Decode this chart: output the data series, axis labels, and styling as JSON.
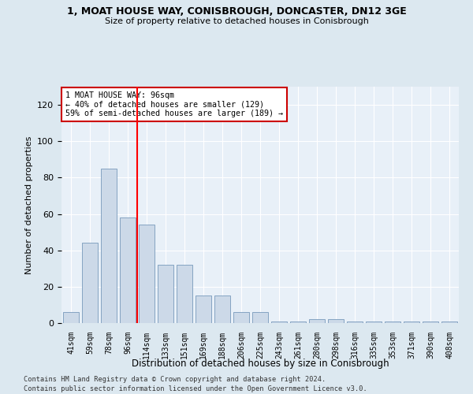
{
  "title1": "1, MOAT HOUSE WAY, CONISBROUGH, DONCASTER, DN12 3GE",
  "title2": "Size of property relative to detached houses in Conisbrough",
  "xlabel": "Distribution of detached houses by size in Conisbrough",
  "ylabel": "Number of detached properties",
  "categories": [
    "41sqm",
    "59sqm",
    "78sqm",
    "96sqm",
    "114sqm",
    "133sqm",
    "151sqm",
    "169sqm",
    "188sqm",
    "206sqm",
    "225sqm",
    "243sqm",
    "261sqm",
    "280sqm",
    "298sqm",
    "316sqm",
    "335sqm",
    "353sqm",
    "371sqm",
    "390sqm",
    "408sqm"
  ],
  "values": [
    6,
    44,
    85,
    58,
    54,
    32,
    32,
    15,
    15,
    6,
    6,
    1,
    1,
    2,
    2,
    1,
    1,
    1,
    1,
    1,
    1
  ],
  "bar_color": "#ccd9e8",
  "bar_edge_color": "#7799bb",
  "red_line_index": 3,
  "annotation_text": "1 MOAT HOUSE WAY: 96sqm\n← 40% of detached houses are smaller (129)\n59% of semi-detached houses are larger (189) →",
  "annotation_box_color": "#ffffff",
  "annotation_box_edge": "#cc0000",
  "ylim": [
    0,
    130
  ],
  "yticks": [
    0,
    20,
    40,
    60,
    80,
    100,
    120
  ],
  "footer1": "Contains HM Land Registry data © Crown copyright and database right 2024.",
  "footer2": "Contains public sector information licensed under the Open Government Licence v3.0.",
  "bg_color": "#dce8f0",
  "plot_bg_color": "#e8f0f8"
}
